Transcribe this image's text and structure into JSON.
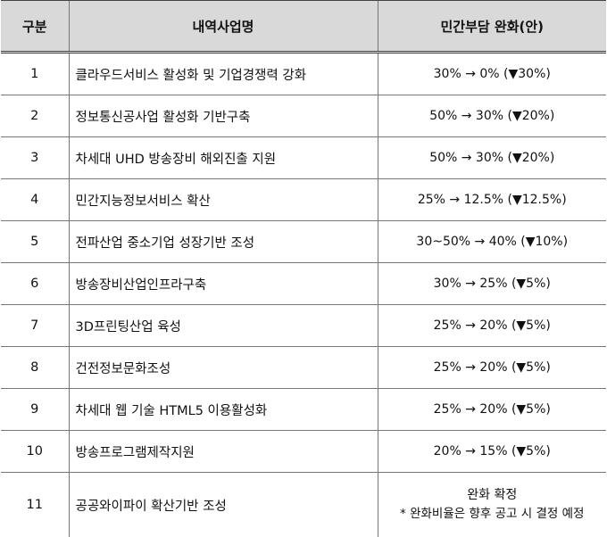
{
  "table": {
    "headers": [
      "구분",
      "내역사업명",
      "민간부담 완화(안)"
    ],
    "rows": [
      {
        "no": "1",
        "name": "클라우드서비스 활성화 및 기업경쟁력 강화",
        "value": "30% → 0% (▼30%)"
      },
      {
        "no": "2",
        "name": "정보통신공사업 활성화 기반구축",
        "value": "50% → 30% (▼20%)"
      },
      {
        "no": "3",
        "name": "차세대 UHD 방송장비 해외진출 지원",
        "value": "50% → 30% (▼20%)"
      },
      {
        "no": "4",
        "name": "민간지능정보서비스 확산",
        "value": "25% → 12.5% (▼12.5%)"
      },
      {
        "no": "5",
        "name": "전파산업 중소기업 성장기반 조성",
        "value": "30~50% → 40% (▼10%)"
      },
      {
        "no": "6",
        "name": "방송장비산업인프라구축",
        "value": "30% → 25% (▼5%)"
      },
      {
        "no": "7",
        "name": "3D프린팅산업 육성",
        "value": "25% → 20% (▼5%)"
      },
      {
        "no": "8",
        "name": "건전정보문화조성",
        "value": "25% → 20% (▼5%)"
      },
      {
        "no": "9",
        "name": "차세대 웹 기술 HTML5 이용활성화",
        "value": "25% → 20% (▼5%)"
      },
      {
        "no": "10",
        "name": "방송프로그램제작지원",
        "value": "20% → 15% (▼5%)"
      }
    ],
    "last_row": {
      "no": "11",
      "name": "공공와이파이 확산기반 조성",
      "value_main": "완화 확정",
      "value_note": "* 완화비율은 향후 공고 시 결정 예정"
    }
  }
}
